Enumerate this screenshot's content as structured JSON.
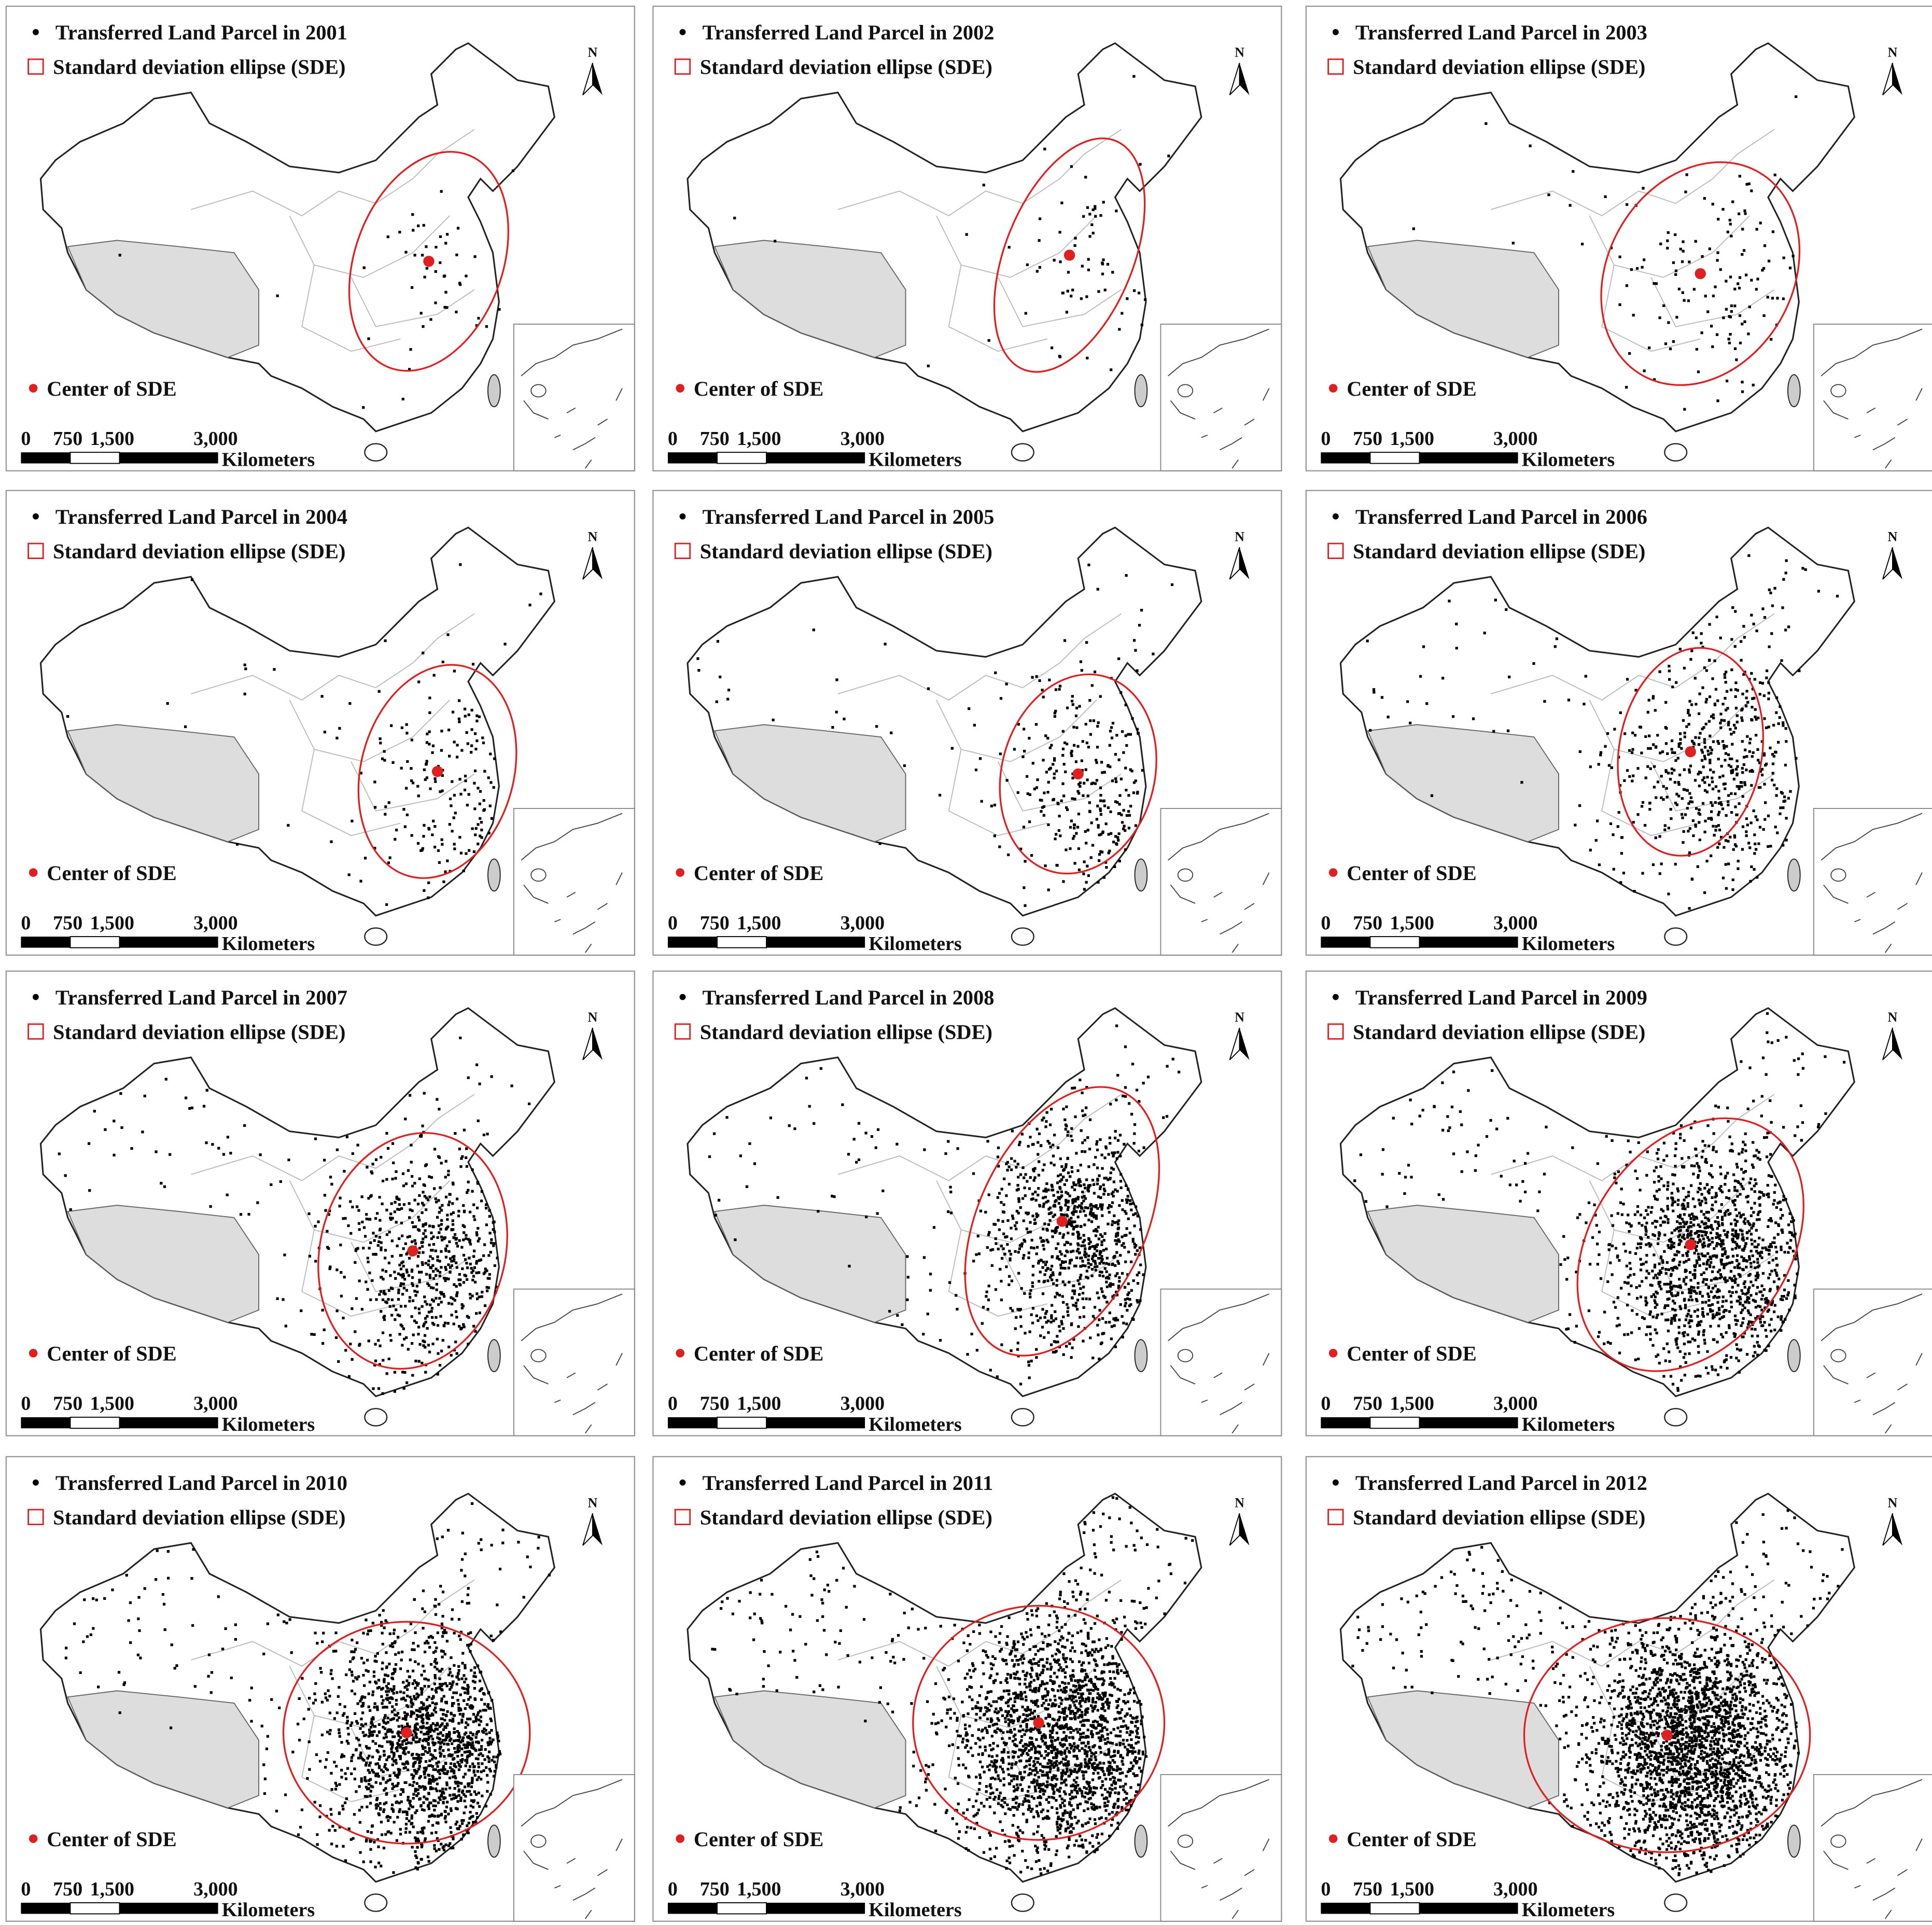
{
  "panels": [
    {
      "title": "Transferred Land Parcel in 2001",
      "legend_sde": "Standard deviation ellipse (SDE)",
      "legend_center": "Center of SDE",
      "scale_labels": [
        "0",
        "750",
        "1,500",
        "3,000"
      ],
      "scale_unit": "Kilometers",
      "north": "N"
    },
    {
      "title": "Transferred Land Parcel in 2002",
      "legend_sde": "Standard deviation ellipse (SDE)",
      "legend_center": "Center of SDE",
      "scale_labels": [
        "0",
        "750",
        "1,500",
        "3,000"
      ],
      "scale_unit": "Kilometers",
      "north": "N"
    },
    {
      "title": "Transferred Land Parcel in 2003",
      "legend_sde": "Standard deviation ellipse (SDE)",
      "legend_center": "Center of SDE",
      "scale_labels": [
        "0",
        "750",
        "1,500",
        "3,000"
      ],
      "scale_unit": "Kilometers",
      "north": "N"
    },
    {
      "title": "Transferred Land Parcel in 2004",
      "legend_sde": "Standard deviation ellipse (SDE)",
      "legend_center": "Center of SDE",
      "scale_labels": [
        "0",
        "750",
        "1,500",
        "3,000"
      ],
      "scale_unit": "Kilometers",
      "north": "N"
    },
    {
      "title": "Transferred Land Parcel in 2005",
      "legend_sde": "Standard deviation ellipse (SDE)",
      "legend_center": "Center of SDE",
      "scale_labels": [
        "0",
        "750",
        "1,500",
        "3,000"
      ],
      "scale_unit": "Kilometers",
      "north": "N"
    },
    {
      "title": "Transferred Land Parcel in 2006",
      "legend_sde": "Standard deviation ellipse (SDE)",
      "legend_center": "Center of SDE",
      "scale_labels": [
        "0",
        "750",
        "1,500",
        "3,000"
      ],
      "scale_unit": "Kilometers",
      "north": "N"
    },
    {
      "title": "Transferred Land Parcel in 2007",
      "legend_sde": "Standard deviation ellipse (SDE)",
      "legend_center": "Center of SDE",
      "scale_labels": [
        "0",
        "750",
        "1,500",
        "3,000"
      ],
      "scale_unit": "Kilometers",
      "north": "N"
    },
    {
      "title": "Transferred Land Parcel in 2008",
      "legend_sde": "Standard deviation ellipse (SDE)",
      "legend_center": "Center of SDE",
      "scale_labels": [
        "0",
        "750",
        "1,500",
        "3,000"
      ],
      "scale_unit": "Kilometers",
      "north": "N"
    },
    {
      "title": "Transferred Land Parcel in 2009",
      "legend_sde": "Standard deviation ellipse (SDE)",
      "legend_center": "Center of SDE",
      "scale_labels": [
        "0",
        "750",
        "1,500",
        "3,000"
      ],
      "scale_unit": "Kilometers",
      "north": "N"
    },
    {
      "title": "Transferred Land Parcel in 2010",
      "legend_sde": "Standard deviation ellipse (SDE)",
      "legend_center": "Center of SDE",
      "scale_labels": [
        "0",
        "750",
        "1,500",
        "3,000"
      ],
      "scale_unit": "Kilometers",
      "north": "N"
    },
    {
      "title": "Transferred Land Parcel in 2011",
      "legend_sde": "Standard deviation ellipse (SDE)",
      "legend_center": "Center of SDE",
      "scale_labels": [
        "0",
        "750",
        "1,500",
        "3,000"
      ],
      "scale_unit": "Kilometers",
      "north": "N"
    },
    {
      "title": "Transferred Land Parcel in 2012",
      "legend_sde": "Standard deviation ellipse (SDE)",
      "legend_center": "Center of SDE",
      "scale_labels": [
        "0",
        "750",
        "1,500",
        "3,000"
      ],
      "scale_unit": "Kilometers",
      "north": "N"
    }
  ]
}
